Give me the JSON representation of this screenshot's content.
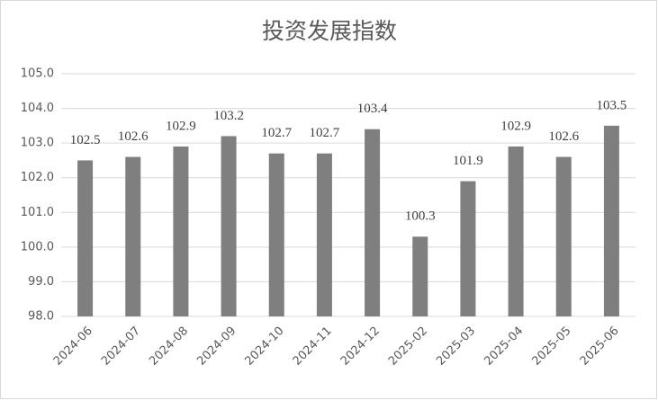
{
  "chart_data": {
    "type": "bar",
    "title": "投资发展指数",
    "categories": [
      "2024-06",
      "2024-07",
      "2024-08",
      "2024-09",
      "2024-10",
      "2024-11",
      "2024-12",
      "2025-02",
      "2025-03",
      "2025-04",
      "2025-05",
      "2025-06"
    ],
    "values": [
      102.5,
      102.6,
      102.9,
      103.2,
      102.7,
      102.7,
      103.4,
      100.3,
      101.9,
      102.9,
      102.6,
      103.5
    ],
    "color": "#7f7f7f",
    "ylim": [
      98,
      105
    ],
    "yticks": [
      {
        "value": 98,
        "label": "98.0"
      },
      {
        "value": 99,
        "label": "99.0"
      },
      {
        "value": 100,
        "label": "100.0"
      },
      {
        "value": 101,
        "label": "101.0"
      },
      {
        "value": 102,
        "label": "102.0"
      },
      {
        "value": 103,
        "label": "103.0"
      },
      {
        "value": 104,
        "label": "104.0"
      },
      {
        "value": 105,
        "label": "105.0"
      }
    ],
    "grid": true
  }
}
